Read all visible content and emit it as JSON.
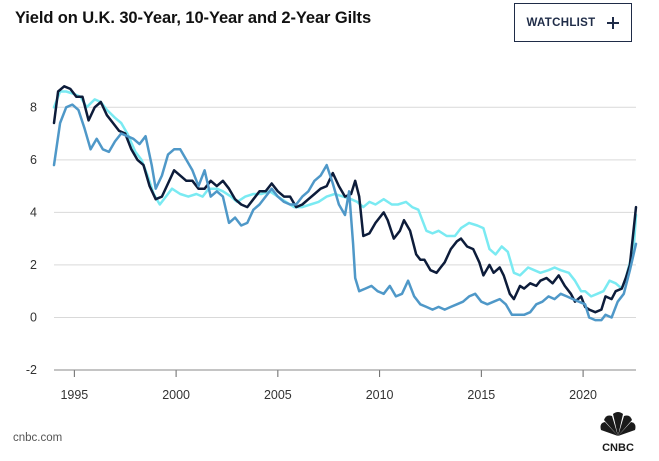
{
  "header": {
    "title": "Yield on U.K. 30-Year, 10-Year and 2-Year Gilts",
    "watchlist_label": "WATCHLIST"
  },
  "footer": {
    "credit": "cnbc.com",
    "logo_text": "CNBC"
  },
  "colors": {
    "thirty_year": "#7aeaf2",
    "ten_year": "#0d1c3a",
    "two_year": "#4f98c8",
    "grid": "#d9d9d9",
    "brand": "#1f2c48"
  },
  "chart_data": {
    "type": "line",
    "title": "Yield on U.K. 30-Year, 10-Year and 2-Year Gilts",
    "xlabel": "",
    "ylabel": "",
    "xlim": [
      1994.0,
      2022.6
    ],
    "ylim": [
      -2,
      9
    ],
    "yticks": [
      -2,
      0,
      2,
      4,
      6,
      8
    ],
    "xticks": [
      1995,
      2000,
      2005,
      2010,
      2015,
      2020
    ],
    "grid": true,
    "legend": "none",
    "series": [
      {
        "key": "thirty_year",
        "x": [
          1994.0,
          1994.3,
          1994.6,
          1995.0,
          1995.3,
          1995.6,
          1996.0,
          1996.3,
          1996.6,
          1997.0,
          1997.3,
          1997.6,
          1998.0,
          1998.3,
          1998.6,
          1998.9,
          1999.2,
          1999.5,
          1999.8,
          2000.2,
          2000.6,
          2001.0,
          2001.3,
          2001.6,
          2002.0,
          2002.3,
          2002.7,
          2003.0,
          2003.4,
          2003.8,
          2004.2,
          2004.6,
          2005.0,
          2005.4,
          2005.8,
          2006.2,
          2006.6,
          2007.0,
          2007.4,
          2007.8,
          2008.2,
          2008.6,
          2008.9,
          2009.2,
          2009.5,
          2009.8,
          2010.2,
          2010.6,
          2010.9,
          2011.3,
          2011.6,
          2011.9,
          2012.3,
          2012.6,
          2012.9,
          2013.3,
          2013.7,
          2014.0,
          2014.4,
          2014.8,
          2015.1,
          2015.4,
          2015.7,
          2016.0,
          2016.3,
          2016.6,
          2016.9,
          2017.3,
          2017.6,
          2017.9,
          2018.3,
          2018.6,
          2018.9,
          2019.3,
          2019.6,
          2019.9,
          2020.1,
          2020.4,
          2020.7,
          2021.0,
          2021.3,
          2021.6,
          2021.9,
          2022.1,
          2022.3,
          2022.5,
          2022.6
        ],
        "values": [
          8.0,
          8.6,
          8.6,
          8.5,
          8.4,
          8.0,
          8.3,
          8.2,
          7.9,
          7.6,
          7.4,
          7.0,
          6.3,
          6.0,
          5.4,
          4.7,
          4.3,
          4.6,
          4.9,
          4.7,
          4.6,
          4.7,
          4.6,
          4.9,
          4.9,
          4.8,
          4.6,
          4.4,
          4.6,
          4.7,
          4.7,
          4.8,
          4.6,
          4.4,
          4.2,
          4.2,
          4.3,
          4.4,
          4.6,
          4.7,
          4.6,
          4.5,
          4.4,
          4.2,
          4.4,
          4.3,
          4.5,
          4.3,
          4.3,
          4.4,
          4.2,
          4.1,
          3.3,
          3.2,
          3.3,
          3.1,
          3.1,
          3.4,
          3.6,
          3.5,
          3.4,
          2.6,
          2.4,
          2.7,
          2.5,
          1.7,
          1.6,
          1.9,
          1.8,
          1.7,
          1.8,
          1.9,
          1.8,
          1.7,
          1.4,
          1.0,
          1.0,
          0.8,
          0.9,
          1.0,
          1.4,
          1.3,
          1.1,
          1.5,
          2.1,
          2.8,
          3.9
        ]
      },
      {
        "key": "ten_year",
        "x": [
          1994.0,
          1994.2,
          1994.5,
          1994.8,
          1995.1,
          1995.4,
          1995.7,
          1996.0,
          1996.3,
          1996.6,
          1996.9,
          1997.2,
          1997.5,
          1997.8,
          1998.1,
          1998.4,
          1998.7,
          1999.0,
          1999.3,
          1999.6,
          1999.9,
          2000.2,
          2000.5,
          2000.8,
          2001.1,
          2001.4,
          2001.7,
          2002.0,
          2002.3,
          2002.6,
          2002.9,
          2003.2,
          2003.5,
          2003.8,
          2004.1,
          2004.4,
          2004.7,
          2005.0,
          2005.3,
          2005.6,
          2005.9,
          2006.2,
          2006.5,
          2006.8,
          2007.1,
          2007.4,
          2007.7,
          2008.0,
          2008.3,
          2008.6,
          2008.8,
          2009.0,
          2009.2,
          2009.5,
          2009.8,
          2010.0,
          2010.2,
          2010.4,
          2010.7,
          2011.0,
          2011.2,
          2011.5,
          2011.8,
          2012.0,
          2012.2,
          2012.5,
          2012.8,
          2013.0,
          2013.2,
          2013.5,
          2013.8,
          2014.0,
          2014.3,
          2014.6,
          2014.9,
          2015.1,
          2015.4,
          2015.6,
          2015.9,
          2016.1,
          2016.4,
          2016.6,
          2016.9,
          2017.1,
          2017.4,
          2017.7,
          2017.9,
          2018.2,
          2018.5,
          2018.8,
          2019.1,
          2019.4,
          2019.6,
          2019.9,
          2020.1,
          2020.3,
          2020.6,
          2020.9,
          2021.1,
          2021.4,
          2021.6,
          2021.9,
          2022.1,
          2022.3,
          2022.6
        ],
        "values": [
          7.4,
          8.6,
          8.8,
          8.7,
          8.4,
          8.4,
          7.5,
          8.0,
          8.2,
          7.7,
          7.4,
          7.1,
          7.0,
          6.4,
          6.0,
          5.8,
          5.0,
          4.5,
          4.6,
          5.1,
          5.6,
          5.4,
          5.2,
          5.2,
          4.9,
          4.9,
          5.2,
          5.0,
          5.2,
          4.9,
          4.5,
          4.3,
          4.2,
          4.5,
          4.8,
          4.8,
          5.1,
          4.8,
          4.6,
          4.6,
          4.2,
          4.3,
          4.5,
          4.7,
          4.9,
          5.0,
          5.5,
          5.0,
          4.6,
          4.7,
          5.2,
          4.6,
          3.1,
          3.2,
          3.6,
          3.8,
          4.0,
          3.7,
          3.0,
          3.3,
          3.7,
          3.3,
          2.4,
          2.2,
          2.2,
          1.8,
          1.7,
          1.9,
          2.1,
          2.6,
          2.9,
          3.0,
          2.7,
          2.6,
          2.1,
          1.6,
          2.0,
          1.7,
          1.9,
          1.6,
          0.9,
          0.7,
          1.2,
          1.1,
          1.3,
          1.2,
          1.4,
          1.5,
          1.3,
          1.6,
          1.2,
          0.9,
          0.6,
          0.8,
          0.4,
          0.3,
          0.2,
          0.3,
          0.8,
          0.7,
          1.0,
          1.1,
          1.5,
          2.0,
          4.2
        ]
      },
      {
        "key": "two_year",
        "x": [
          1994.0,
          1994.3,
          1994.6,
          1994.9,
          1995.2,
          1995.5,
          1995.8,
          1996.1,
          1996.4,
          1996.7,
          1997.0,
          1997.3,
          1997.6,
          1997.9,
          1998.2,
          1998.5,
          1998.8,
          1999.0,
          1999.3,
          1999.6,
          1999.9,
          2000.2,
          2000.5,
          2000.8,
          2001.1,
          2001.4,
          2001.7,
          2002.0,
          2002.3,
          2002.6,
          2002.9,
          2003.2,
          2003.5,
          2003.8,
          2004.1,
          2004.4,
          2004.7,
          2005.0,
          2005.3,
          2005.6,
          2005.9,
          2006.2,
          2006.5,
          2006.8,
          2007.1,
          2007.4,
          2007.7,
          2008.0,
          2008.3,
          2008.5,
          2008.7,
          2008.8,
          2009.0,
          2009.3,
          2009.6,
          2009.9,
          2010.2,
          2010.5,
          2010.8,
          2011.1,
          2011.4,
          2011.7,
          2012.0,
          2012.3,
          2012.6,
          2012.9,
          2013.2,
          2013.5,
          2013.8,
          2014.1,
          2014.4,
          2014.7,
          2015.0,
          2015.3,
          2015.6,
          2015.9,
          2016.2,
          2016.5,
          2016.8,
          2017.1,
          2017.4,
          2017.7,
          2018.0,
          2018.3,
          2018.6,
          2018.9,
          2019.2,
          2019.5,
          2019.8,
          2020.1,
          2020.3,
          2020.6,
          2020.9,
          2021.1,
          2021.4,
          2021.7,
          2022.0,
          2022.3,
          2022.6
        ],
        "values": [
          5.8,
          7.4,
          8.0,
          8.1,
          7.9,
          7.2,
          6.4,
          6.8,
          6.4,
          6.3,
          6.7,
          7.0,
          6.9,
          6.8,
          6.6,
          6.9,
          5.8,
          4.9,
          5.4,
          6.2,
          6.4,
          6.4,
          6.0,
          5.6,
          5.0,
          5.6,
          4.6,
          4.8,
          4.6,
          3.6,
          3.8,
          3.5,
          3.6,
          4.1,
          4.3,
          4.6,
          4.9,
          4.6,
          4.4,
          4.3,
          4.3,
          4.6,
          4.8,
          5.2,
          5.4,
          5.8,
          5.1,
          4.3,
          3.9,
          4.8,
          2.8,
          1.5,
          1.0,
          1.1,
          1.2,
          1.0,
          0.9,
          1.2,
          0.8,
          0.9,
          1.4,
          0.8,
          0.5,
          0.4,
          0.3,
          0.4,
          0.3,
          0.4,
          0.5,
          0.6,
          0.8,
          0.9,
          0.6,
          0.5,
          0.6,
          0.7,
          0.5,
          0.1,
          0.1,
          0.1,
          0.2,
          0.5,
          0.6,
          0.8,
          0.7,
          0.9,
          0.8,
          0.7,
          0.6,
          0.5,
          0.0,
          -0.1,
          -0.1,
          0.1,
          0.0,
          0.6,
          0.9,
          1.8,
          2.8
        ]
      }
    ]
  }
}
